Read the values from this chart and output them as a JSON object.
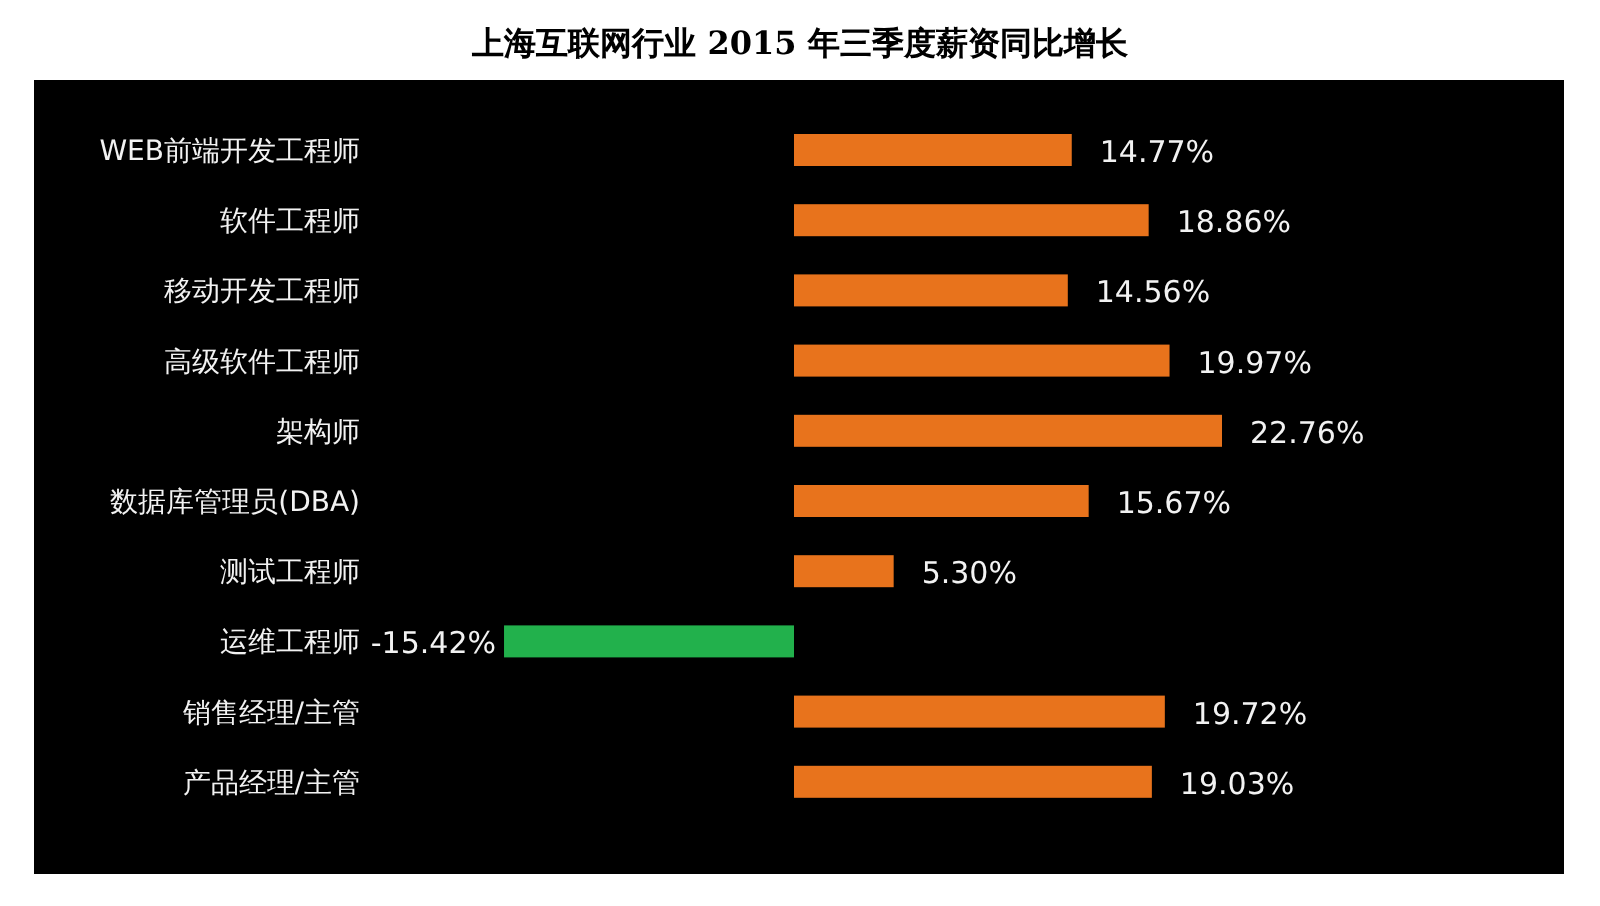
{
  "chart_data": {
    "type": "bar",
    "orientation": "horizontal",
    "title": "上海互联网行业 2015 年三季度薪资同比增长",
    "categories": [
      "WEB前端开发工程师",
      "软件工程师",
      "移动开发工程师",
      "高级软件工程师",
      "架构师",
      "数据库管理员(DBA)",
      "测试工程师",
      "运维工程师",
      "销售经理/主管",
      "产品经理/主管"
    ],
    "values": [
      14.77,
      18.86,
      14.56,
      19.97,
      22.76,
      15.67,
      5.3,
      -15.42,
      19.72,
      19.03
    ],
    "value_labels": [
      "14.77%",
      "18.86%",
      "14.56%",
      "19.97%",
      "22.76%",
      "15.67%",
      "5.30%",
      "-15.42%",
      "19.72%",
      "19.03%"
    ],
    "colors": [
      "#e8731c",
      "#e8731c",
      "#e8731c",
      "#e8731c",
      "#e8731c",
      "#e8731c",
      "#e8731c",
      "#22b14c",
      "#e8731c",
      "#e8731c"
    ]
  }
}
